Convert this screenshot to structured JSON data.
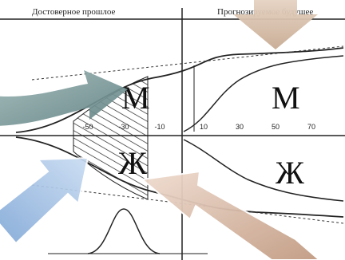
{
  "header": {
    "left": "Достоверное прошлое",
    "right": "Прогнозируемое будущее"
  },
  "axis": {
    "ticks": [
      "-50",
      "-30",
      "-10",
      "10",
      "30",
      "50",
      "70"
    ]
  },
  "labels": {
    "male_past": "М",
    "male_future": "М",
    "female_past": "Ж",
    "female_future": "Ж"
  }
}
